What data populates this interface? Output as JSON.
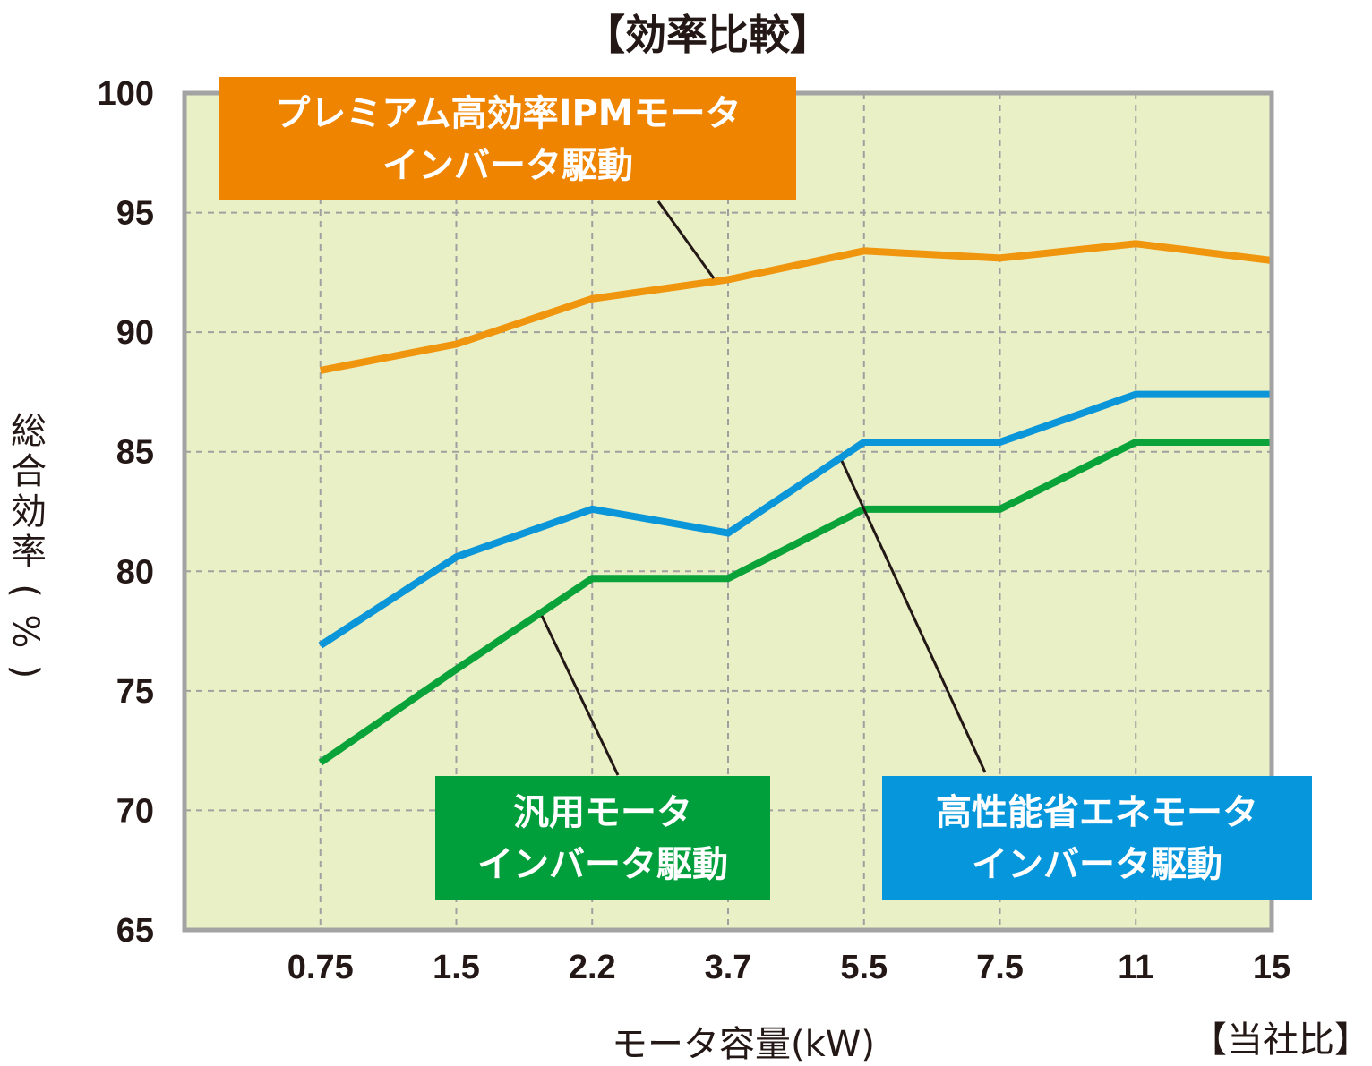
{
  "chart_data": {
    "type": "line",
    "title": "【効率比較】",
    "xlabel": "モータ容量(kW)",
    "ylabel": "総合効率(%)",
    "note": "【当社比】",
    "categories": [
      "0.75",
      "1.5",
      "2.2",
      "3.7",
      "5.5",
      "7.5",
      "11",
      "15"
    ],
    "ylim": [
      65,
      100
    ],
    "yticks": [
      100,
      95,
      90,
      85,
      80,
      75,
      70,
      65
    ],
    "grid": true,
    "series": [
      {
        "name": "プレミアム高効率IPMモータ インバータ駆動",
        "label_lines": [
          "プレミアム高効率IPMモータ",
          "インバータ駆動"
        ],
        "color": "#f0950e",
        "label_color": "#ee8400",
        "values": [
          88.4,
          89.5,
          91.4,
          92.2,
          93.4,
          93.1,
          93.7,
          93.0
        ]
      },
      {
        "name": "高性能省エネモータ インバータ駆動",
        "label_lines": [
          "高性能省エネモータ",
          "インバータ駆動"
        ],
        "color": "#0a96d8",
        "label_color": "#0596dc",
        "values": [
          76.9,
          80.6,
          82.6,
          81.6,
          85.4,
          85.4,
          87.4,
          87.4
        ]
      },
      {
        "name": "汎用モータ インバータ駆動",
        "label_lines": [
          "汎用モータ",
          "インバータ駆動"
        ],
        "color": "#0aa33a",
        "label_color": "#009f3c",
        "values": [
          72.0,
          75.9,
          79.7,
          79.7,
          82.6,
          82.6,
          85.4,
          85.4
        ]
      }
    ]
  }
}
